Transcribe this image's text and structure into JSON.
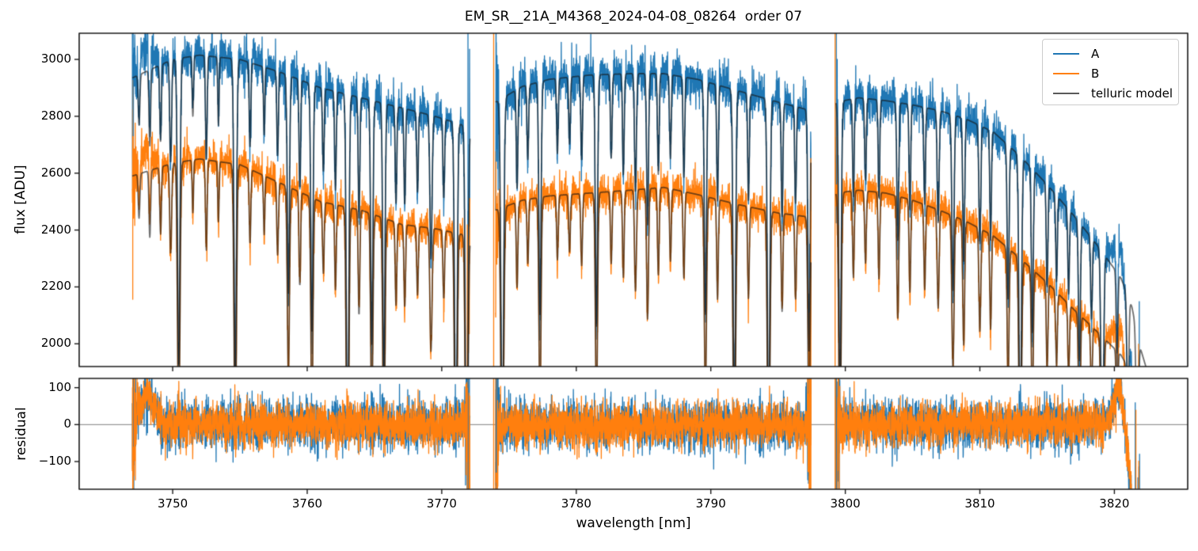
{
  "chart_data": {
    "type": "line",
    "title": "EM_SR__21A_M4368_2024-04-08_08264  order 07",
    "xlabel": "wavelength [nm]",
    "xlim": [
      3743.05,
      3825.45
    ],
    "xticks": [
      3750,
      3760,
      3770,
      3780,
      3790,
      3800,
      3810,
      3820
    ],
    "grid": false,
    "panels": [
      {
        "name": "flux",
        "ylabel": "flux [ADU]",
        "ylim": [
          1920,
          3092
        ],
        "yticks": [
          2000,
          2200,
          2400,
          2600,
          2800,
          3000
        ]
      },
      {
        "name": "residual",
        "ylabel": "residual",
        "ylim": [
          -175,
          125
        ],
        "yticks": [
          -100,
          0,
          100
        ],
        "zero_line": true
      }
    ],
    "legend": {
      "position": "upper right",
      "entries": [
        {
          "label": "A",
          "color": "#1f77b4"
        },
        {
          "label": "B",
          "color": "#ff7f0e"
        },
        {
          "label": "telluric model",
          "color": "#595959"
        }
      ]
    },
    "colors": {
      "A": "#1f77b4",
      "B": "#ff7f0e",
      "model": "rgba(25,25,25,0.62)",
      "zero_line": "#7f7f7f",
      "spine": "#1a1a1a"
    },
    "segments": [
      {
        "start": 3747.0,
        "end": 3772.1
      },
      {
        "start": 3774.0,
        "end": 3797.45
      },
      {
        "start": 3799.3,
        "end": 3821.9
      }
    ],
    "model_overhang_nm": 0.5,
    "continuum_A": [
      [
        3747.0,
        2935
      ],
      [
        3750.0,
        3000
      ],
      [
        3752.0,
        3015
      ],
      [
        3755.0,
        3000
      ],
      [
        3758.0,
        2955
      ],
      [
        3761.0,
        2900
      ],
      [
        3764.0,
        2865
      ],
      [
        3767.0,
        2830
      ],
      [
        3769.5,
        2800
      ],
      [
        3771.5,
        2770
      ],
      [
        3772.1,
        2750
      ],
      [
        3774.0,
        2850
      ],
      [
        3776.0,
        2905
      ],
      [
        3778.0,
        2930
      ],
      [
        3781.0,
        2945
      ],
      [
        3784.0,
        2950
      ],
      [
        3786.5,
        2950
      ],
      [
        3789.0,
        2930
      ],
      [
        3792.0,
        2890
      ],
      [
        3795.0,
        2850
      ],
      [
        3797.45,
        2820
      ],
      [
        3799.3,
        2850
      ],
      [
        3801.0,
        2865
      ],
      [
        3803.0,
        2855
      ],
      [
        3805.0,
        2840
      ],
      [
        3807.0,
        2820
      ],
      [
        3809.0,
        2790
      ],
      [
        3811.0,
        2745
      ],
      [
        3813.0,
        2660
      ],
      [
        3815.0,
        2560
      ],
      [
        3817.0,
        2450
      ],
      [
        3819.0,
        2330
      ],
      [
        3820.5,
        2230
      ],
      [
        3821.3,
        2130
      ],
      [
        3821.9,
        1990
      ],
      [
        3822.4,
        1910
      ]
    ],
    "continuum_B": [
      [
        3747.0,
        2590
      ],
      [
        3750.0,
        2635
      ],
      [
        3752.0,
        2650
      ],
      [
        3755.0,
        2630
      ],
      [
        3758.0,
        2565
      ],
      [
        3761.0,
        2500
      ],
      [
        3764.0,
        2470
      ],
      [
        3767.0,
        2420
      ],
      [
        3769.5,
        2405
      ],
      [
        3771.5,
        2385
      ],
      [
        3772.1,
        2370
      ],
      [
        3774.0,
        2470
      ],
      [
        3776.0,
        2505
      ],
      [
        3778.0,
        2520
      ],
      [
        3781.0,
        2530
      ],
      [
        3784.0,
        2540
      ],
      [
        3786.5,
        2550
      ],
      [
        3789.0,
        2525
      ],
      [
        3792.0,
        2490
      ],
      [
        3795.0,
        2460
      ],
      [
        3797.45,
        2445
      ],
      [
        3799.3,
        2530
      ],
      [
        3801.0,
        2540
      ],
      [
        3803.0,
        2530
      ],
      [
        3805.0,
        2505
      ],
      [
        3807.0,
        2470
      ],
      [
        3809.0,
        2430
      ],
      [
        3811.0,
        2380
      ],
      [
        3813.0,
        2300
      ],
      [
        3815.0,
        2215
      ],
      [
        3817.0,
        2120
      ],
      [
        3819.0,
        2030
      ],
      [
        3820.5,
        1960
      ],
      [
        3821.3,
        1890
      ],
      [
        3821.9,
        1800
      ],
      [
        3822.4,
        1740
      ]
    ],
    "telluric_lines": [
      [
        3747.5,
        0.06,
        0.06
      ],
      [
        3748.3,
        0.09,
        0.06
      ],
      [
        3749.1,
        0.09,
        0.06
      ],
      [
        3749.85,
        0.12,
        0.07
      ],
      [
        3750.45,
        0.36,
        0.09
      ],
      [
        3751.5,
        0.07,
        0.05
      ],
      [
        3752.5,
        0.12,
        0.06
      ],
      [
        3753.4,
        0.08,
        0.05
      ],
      [
        3754.65,
        0.38,
        0.09
      ],
      [
        3755.75,
        0.1,
        0.06
      ],
      [
        3756.8,
        0.08,
        0.05
      ],
      [
        3757.8,
        0.1,
        0.06
      ],
      [
        3758.6,
        0.26,
        0.08
      ],
      [
        3759.45,
        0.13,
        0.06
      ],
      [
        3760.35,
        0.3,
        0.08
      ],
      [
        3761.2,
        0.1,
        0.06
      ],
      [
        3762.1,
        0.12,
        0.06
      ],
      [
        3763.0,
        0.45,
        0.09
      ],
      [
        3763.85,
        0.15,
        0.06
      ],
      [
        3764.8,
        0.3,
        0.08
      ],
      [
        3765.7,
        0.35,
        0.08
      ],
      [
        3766.6,
        0.12,
        0.06
      ],
      [
        3767.25,
        0.12,
        0.06
      ],
      [
        3768.2,
        0.1,
        0.06
      ],
      [
        3769.2,
        0.18,
        0.08
      ],
      [
        3770.15,
        0.1,
        0.06
      ],
      [
        3771.05,
        0.45,
        0.09
      ],
      [
        3771.85,
        0.5,
        0.09
      ],
      [
        3774.5,
        0.42,
        0.1
      ],
      [
        3775.6,
        0.12,
        0.06
      ],
      [
        3776.4,
        0.09,
        0.06
      ],
      [
        3777.3,
        0.28,
        0.08
      ],
      [
        3778.6,
        0.09,
        0.06
      ],
      [
        3779.5,
        0.08,
        0.06
      ],
      [
        3780.4,
        0.1,
        0.06
      ],
      [
        3781.5,
        0.3,
        0.08
      ],
      [
        3782.6,
        0.1,
        0.06
      ],
      [
        3783.5,
        0.12,
        0.06
      ],
      [
        3784.4,
        0.14,
        0.07
      ],
      [
        3785.3,
        0.18,
        0.07
      ],
      [
        3786.1,
        0.12,
        0.06
      ],
      [
        3787.0,
        0.1,
        0.06
      ],
      [
        3788.0,
        0.12,
        0.06
      ],
      [
        3789.6,
        0.28,
        0.08
      ],
      [
        3790.5,
        0.14,
        0.06
      ],
      [
        3791.75,
        0.4,
        0.09
      ],
      [
        3792.8,
        0.13,
        0.06
      ],
      [
        3794.3,
        0.42,
        0.09
      ],
      [
        3795.3,
        0.14,
        0.06
      ],
      [
        3796.3,
        0.12,
        0.06
      ],
      [
        3797.3,
        0.3,
        0.08
      ],
      [
        3799.6,
        0.35,
        0.09
      ],
      [
        3800.6,
        0.12,
        0.06
      ],
      [
        3801.5,
        0.1,
        0.06
      ],
      [
        3802.5,
        0.12,
        0.06
      ],
      [
        3803.9,
        0.17,
        0.07
      ],
      [
        3804.8,
        0.13,
        0.06
      ],
      [
        3805.9,
        0.12,
        0.06
      ],
      [
        3806.9,
        0.14,
        0.07
      ],
      [
        3808.0,
        0.22,
        0.08
      ],
      [
        3808.8,
        0.18,
        0.07
      ],
      [
        3810.0,
        0.15,
        0.07
      ],
      [
        3810.8,
        0.14,
        0.06
      ],
      [
        3812.1,
        0.2,
        0.07
      ],
      [
        3813.0,
        0.38,
        0.09
      ],
      [
        3813.9,
        0.22,
        0.07
      ],
      [
        3815.0,
        0.14,
        0.06
      ],
      [
        3815.7,
        0.12,
        0.06
      ],
      [
        3816.6,
        0.12,
        0.06
      ],
      [
        3817.4,
        0.2,
        0.07
      ],
      [
        3818.3,
        0.12,
        0.06
      ],
      [
        3819.1,
        0.35,
        0.09
      ],
      [
        3820.2,
        0.15,
        0.06
      ],
      [
        3821.0,
        0.18,
        0.07
      ],
      [
        3821.7,
        0.25,
        0.08
      ]
    ],
    "noise": {
      "rel_sigma_A": 0.013,
      "rel_sigma_B": 0.0125,
      "residual_sigma_A": 33,
      "residual_sigma_B": 30,
      "line_amp_exponent": 0.75,
      "min_transmission": 0.12,
      "edge_zone_nm": 0.45,
      "edge_noise_boost": 6
    },
    "edge_systematics": {
      "seg1_bump_amp": 80,
      "seg1_bump_center": 3748.1,
      "seg1_bump_sigma": 0.55,
      "seg3_bump_amp": 95,
      "seg3_bump_center": 3820.4,
      "seg3_bump_sigma": 0.5,
      "seg3_fall_start": 3820.5,
      "seg3_fall_slope_per_nm": 380
    },
    "artifacts": {
      "flux": {
        "A": [
          [
            3747.06,
            2730,
            3092
          ],
          [
            3771.95,
            1800,
            3300
          ],
          [
            3774.05,
            2640,
            3060
          ],
          [
            3799.33,
            2560,
            3300
          ],
          [
            3821.85,
            1700,
            2150
          ]
        ],
        "B": [
          [
            3747.03,
            2155,
            2640
          ],
          [
            3771.9,
            1800,
            2420
          ],
          [
            3773.86,
            1800,
            3300
          ],
          [
            3797.43,
            1800,
            2470
          ],
          [
            3799.24,
            1800,
            3300
          ],
          [
            3821.8,
            1600,
            2000
          ]
        ]
      },
      "residual": {
        "A": [
          [
            3747.06,
            -60,
            150
          ],
          [
            3771.95,
            -250,
            150
          ],
          [
            3774.05,
            -130,
            150
          ],
          [
            3799.33,
            -250,
            150
          ],
          [
            3821.55,
            -250,
            60
          ]
        ],
        "B": [
          [
            3747.03,
            -250,
            150
          ],
          [
            3771.9,
            -180,
            100
          ],
          [
            3773.86,
            -250,
            150
          ],
          [
            3797.43,
            -250,
            130
          ],
          [
            3799.24,
            -250,
            150
          ],
          [
            3821.6,
            -250,
            40
          ]
        ]
      }
    }
  }
}
